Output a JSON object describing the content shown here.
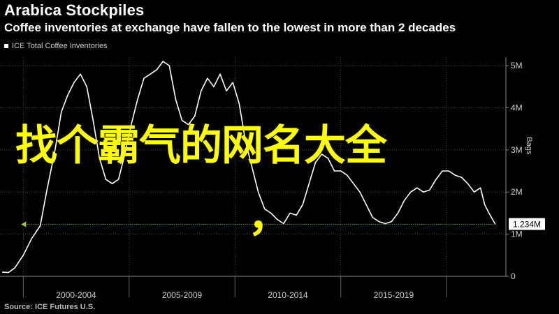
{
  "header": {
    "title": "Arabica Stockpiles",
    "subtitle": "Coffee inventories at exchange have fallen to the lowest in more than 2 decades"
  },
  "footer": {
    "source": "Source: ICE Futures U.S."
  },
  "overlay": {
    "text": "找个霸气的网名大全",
    "comma": "，",
    "color": "#ffff00"
  },
  "colors": {
    "background": "#000000",
    "line": "#ffffff",
    "reference": "#9acd32",
    "grid": "#444444"
  },
  "chart_data": {
    "type": "line",
    "legend": [
      "ICE Total Coffee Inventories"
    ],
    "legend_position": "top-left",
    "yunit": "Bags",
    "ylim": [
      0,
      5200000
    ],
    "yticks": [
      0,
      1000000,
      2000000,
      3000000,
      4000000,
      5000000
    ],
    "ytick_labels": [
      "0",
      "1M",
      "2M",
      "3M",
      "4M",
      "5M"
    ],
    "xlim": [
      1998.9,
      2022.8
    ],
    "x_category_labels": [
      "2000-2004",
      "2005-2009",
      "2010-2014",
      "2015-2019"
    ],
    "grid": true,
    "current_value_label": "1.234M",
    "current_value": 1234000,
    "series": [
      {
        "name": "ICE Total Coffee Inventories",
        "x": [
          1999.0,
          1999.3,
          1999.6,
          2000.0,
          2000.4,
          2000.8,
          2001.1,
          2001.5,
          2001.8,
          2002.1,
          2002.4,
          2002.7,
          2003.0,
          2003.3,
          2003.6,
          2003.9,
          2004.2,
          2004.5,
          2004.8,
          2005.1,
          2005.4,
          2005.7,
          2006.0,
          2006.3,
          2006.6,
          2006.9,
          2007.2,
          2007.5,
          2007.8,
          2008.1,
          2008.4,
          2008.7,
          2009.0,
          2009.3,
          2009.6,
          2009.9,
          2010.2,
          2010.5,
          2010.8,
          2011.1,
          2011.4,
          2011.7,
          2012.0,
          2012.3,
          2012.6,
          2012.9,
          2013.2,
          2013.5,
          2013.8,
          2014.1,
          2014.4,
          2014.7,
          2015.0,
          2015.3,
          2015.6,
          2015.9,
          2016.2,
          2016.5,
          2016.8,
          2017.1,
          2017.4,
          2017.7,
          2018.0,
          2018.3,
          2018.6,
          2018.9,
          2019.2,
          2019.5,
          2019.8,
          2020.1,
          2020.4,
          2020.7,
          2021.0,
          2021.3,
          2021.6,
          2021.8,
          2022.0,
          2022.3
        ],
        "values": [
          100000,
          90000,
          200000,
          500000,
          900000,
          1200000,
          2000000,
          3000000,
          3900000,
          4300000,
          4600000,
          4800000,
          4500000,
          3700000,
          2800000,
          2300000,
          2200000,
          2300000,
          2900000,
          3600000,
          4200000,
          4700000,
          4800000,
          4900000,
          5100000,
          5000000,
          4200000,
          3700000,
          3600000,
          3800000,
          4400000,
          4700000,
          4500000,
          4800000,
          4400000,
          4600000,
          4100000,
          3200000,
          2600000,
          2000000,
          1600000,
          1500000,
          1350000,
          1250000,
          1500000,
          1450000,
          1700000,
          2200000,
          2700000,
          2900000,
          2800000,
          2500000,
          2500000,
          2400000,
          2200000,
          2000000,
          1700000,
          1400000,
          1300000,
          1250000,
          1300000,
          1500000,
          1800000,
          2000000,
          2100000,
          2000000,
          2050000,
          2300000,
          2500000,
          2500000,
          2400000,
          2350000,
          2200000,
          2000000,
          2100000,
          1700000,
          1500000,
          1234000
        ]
      }
    ],
    "reference_line": {
      "value": 1234000,
      "x_start": 1999.9
    }
  }
}
